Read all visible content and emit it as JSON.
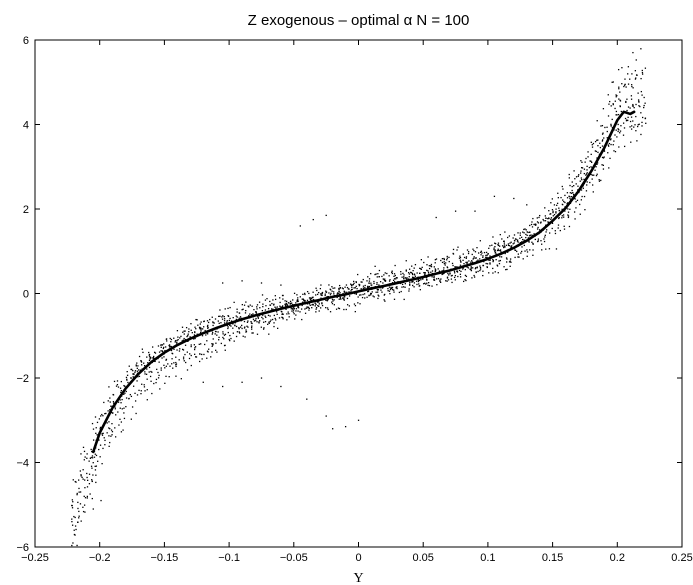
{
  "chart_data": {
    "type": "scatter",
    "title": "Z exogenous –  optimal α     N = 100",
    "xlabel": "Y",
    "ylabel": "",
    "xlim": [
      -0.25,
      0.25
    ],
    "ylim": [
      -6,
      6
    ],
    "xticks": [
      -0.25,
      -0.2,
      -0.15,
      -0.1,
      -0.05,
      0,
      0.05,
      0.1,
      0.15,
      0.2,
      0.25
    ],
    "xtick_labels": [
      "−0.25",
      "−0.2",
      "−0.15",
      "−0.1",
      "−0.05",
      "0",
      "0.05",
      "0.1",
      "0.15",
      "0.2",
      "0.25"
    ],
    "yticks": [
      -6,
      -4,
      -2,
      0,
      2,
      4,
      6
    ],
    "ytick_labels": [
      "−6",
      "−4",
      "−2",
      "0",
      "2",
      "4",
      "6"
    ],
    "grid": false,
    "colors": {
      "points": "#000000",
      "curve": "#000000",
      "axes": "#000000"
    },
    "series": [
      {
        "kind": "scatter",
        "points_per_curve": 100,
        "curves": [
          [
            0.0,
            0.1
          ],
          [
            0.1,
            -0.1
          ],
          [
            0.18,
            0.15
          ],
          [
            -0.15,
            -0.2
          ],
          [
            0.25,
            -0.05
          ],
          [
            -0.05,
            0.25
          ],
          [
            0.05,
            -0.3
          ],
          [
            0.3,
            0.05
          ],
          [
            -0.2,
            0.0
          ],
          [
            0.12,
            0.2
          ],
          [
            -0.1,
            -0.15
          ],
          [
            0.2,
            -0.2
          ],
          [
            0.08,
            0.3
          ],
          [
            -0.12,
            0.1
          ],
          [
            0.15,
            0.0
          ],
          [
            0.02,
            -0.25
          ],
          [
            0.28,
            0.2
          ],
          [
            -0.08,
            -0.05
          ],
          [
            0.22,
            0.12
          ],
          [
            -0.18,
            0.18
          ]
        ],
        "noise_sd": 0.1,
        "x_start": -0.22,
        "x_end": 0.22,
        "extra_points": [
          [
            -0.219,
            -5.3
          ],
          [
            -0.212,
            -4.8
          ],
          [
            -0.205,
            -5.1
          ],
          [
            -0.208,
            -4.5
          ],
          [
            -0.215,
            -4.2
          ],
          [
            -0.199,
            -4.9
          ],
          [
            -0.21,
            -3.9
          ],
          [
            -0.203,
            -4.3
          ],
          [
            0.201,
            5.3
          ],
          [
            0.205,
            4.9
          ],
          [
            0.211,
            4.6
          ],
          [
            0.196,
            5.0
          ],
          [
            0.208,
            5.2
          ],
          [
            0.213,
            4.4
          ],
          [
            0.199,
            4.7
          ],
          [
            -0.12,
            -2.1
          ],
          [
            -0.105,
            -2.2
          ],
          [
            -0.09,
            -2.1
          ],
          [
            -0.075,
            -2.0
          ],
          [
            -0.06,
            -2.2
          ],
          [
            -0.04,
            -2.5
          ],
          [
            -0.025,
            -2.9
          ],
          [
            -0.02,
            -3.2
          ],
          [
            -0.01,
            -3.15
          ],
          [
            0.0,
            -3.0
          ],
          [
            -0.105,
            0.25
          ],
          [
            -0.09,
            0.3
          ],
          [
            -0.075,
            0.25
          ],
          [
            -0.06,
            0.2
          ],
          [
            0.06,
            1.8
          ],
          [
            0.075,
            1.95
          ],
          [
            0.09,
            1.95
          ],
          [
            0.105,
            2.3
          ],
          [
            0.12,
            2.25
          ],
          [
            0.13,
            2.1
          ],
          [
            -0.025,
            1.85
          ],
          [
            -0.035,
            1.75
          ],
          [
            -0.045,
            1.6
          ]
        ]
      },
      {
        "kind": "line",
        "x": [
          -0.205,
          -0.2,
          -0.19,
          -0.18,
          -0.17,
          -0.16,
          -0.15,
          -0.14,
          -0.13,
          -0.12,
          -0.11,
          -0.1,
          -0.09,
          -0.08,
          -0.07,
          -0.06,
          -0.05,
          -0.04,
          -0.03,
          -0.02,
          -0.01,
          0.0,
          0.01,
          0.02,
          0.03,
          0.04,
          0.05,
          0.06,
          0.07,
          0.08,
          0.09,
          0.1,
          0.11,
          0.12,
          0.13,
          0.14,
          0.15,
          0.16,
          0.17,
          0.18,
          0.19,
          0.2,
          0.205,
          0.21,
          0.213
        ],
        "y": [
          -3.75,
          -3.3,
          -2.7,
          -2.25,
          -1.9,
          -1.62,
          -1.4,
          -1.22,
          -1.07,
          -0.94,
          -0.82,
          -0.71,
          -0.61,
          -0.52,
          -0.44,
          -0.36,
          -0.29,
          -0.22,
          -0.15,
          -0.08,
          -0.02,
          0.05,
          0.12,
          0.18,
          0.25,
          0.32,
          0.39,
          0.47,
          0.54,
          0.63,
          0.72,
          0.82,
          0.94,
          1.08,
          1.25,
          1.45,
          1.72,
          2.02,
          2.42,
          2.9,
          3.45,
          4.1,
          4.3,
          4.25,
          4.3
        ]
      }
    ]
  }
}
